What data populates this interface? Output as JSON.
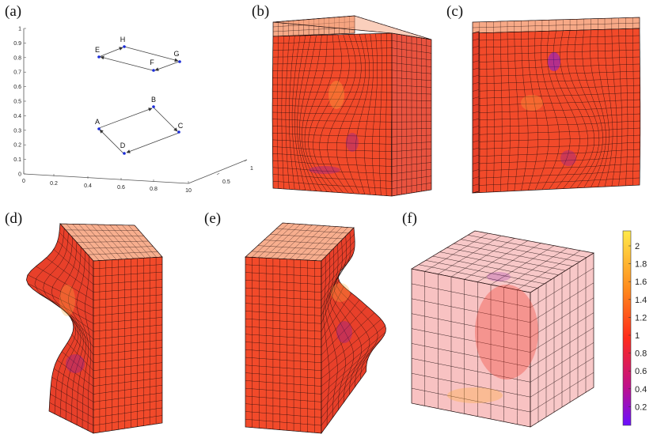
{
  "panels": [
    {
      "id": "a",
      "label": "(a)"
    },
    {
      "id": "b",
      "label": "(b)"
    },
    {
      "id": "c",
      "label": "(c)"
    },
    {
      "id": "d",
      "label": "(d)"
    },
    {
      "id": "e",
      "label": "(e)"
    },
    {
      "id": "f",
      "label": "(f)"
    }
  ],
  "plot_a": {
    "z_ticks": [
      "0",
      "0.1",
      "0.2",
      "0.3",
      "0.4",
      "0.5",
      "0.6",
      "0.7",
      "0.8",
      "0.9",
      "1"
    ],
    "x_ticks": [
      "0",
      "0.2",
      "0.4",
      "0.6",
      "0.8",
      "10"
    ],
    "y_ticks": [
      "0.5",
      "1"
    ],
    "points": [
      "A",
      "B",
      "C",
      "D",
      "E",
      "F",
      "G",
      "H"
    ],
    "point_color": "#1a2bd8"
  },
  "colorbar": {
    "ticks": [
      "2",
      "1.8",
      "1.6",
      "1.4",
      "1.2",
      "1",
      "0.8",
      "0.6",
      "0.4",
      "0.2"
    ],
    "colors": [
      "#ffe94a",
      "#ff8a1c",
      "#ff2b1a",
      "#c0108a",
      "#6a10ff"
    ]
  },
  "mesh_colors": {
    "fill": "#f24a2a",
    "fill_dark": "#d8301f",
    "line": "#1a0a0a",
    "translucent": "#f39a9a"
  }
}
